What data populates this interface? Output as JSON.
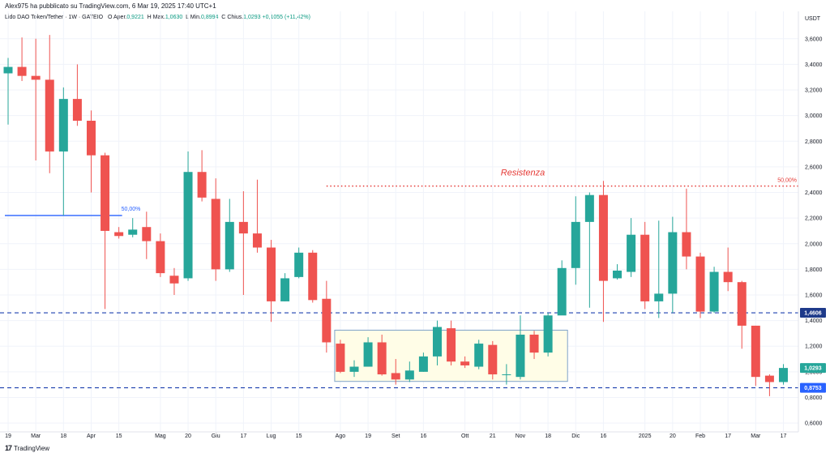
{
  "header": {
    "text": "Alex975 ha pubblicato su TradingView.com, 6 Mar 19, 2025 17:40 UTC+1"
  },
  "legend": {
    "symbol": "Lido DAO Token/Tether · 1W · GATEIO",
    "open_label": "O",
    "open_prefix": "Aper.",
    "open": "0,9221",
    "high_label": "H",
    "high_prefix": "Max.",
    "high": "1,0630",
    "low_label": "L",
    "low_prefix": "Min.",
    "low": "0,8994",
    "close_label": "C",
    "close_prefix": "Chius.",
    "close": "1,0293",
    "change": "+0,1055 (+11,42%)"
  },
  "footer": {
    "logo": "17",
    "text": "TradingView"
  },
  "colors": {
    "up": "#26a69a",
    "down": "#ef5350",
    "blue": "#2962ff",
    "dash": "#1e40af",
    "red": "#e53935",
    "box": "#fffde7"
  },
  "chart_data": {
    "type": "candlestick",
    "currency": "USDT",
    "ylim": [
      0.55,
      3.7
    ],
    "yticks": [
      "0,6000",
      "0,8000",
      "1,0000",
      "1,2000",
      "1,4000",
      "1,6000",
      "1,8000",
      "2,0000",
      "2,2000",
      "2,4000",
      "2,6000",
      "2,8000",
      "3,0000",
      "3,2000",
      "3,4000",
      "3,6000"
    ],
    "ytick_values": [
      0.6,
      0.8,
      1.0,
      1.2,
      1.4,
      1.6,
      1.8,
      2.0,
      2.2,
      2.4,
      2.6,
      2.8,
      3.0,
      3.2,
      3.4,
      3.6
    ],
    "xticks": [
      {
        "label": "19",
        "i": 0
      },
      {
        "label": "Mar",
        "i": 2
      },
      {
        "label": "18",
        "i": 4
      },
      {
        "label": "Apr",
        "i": 6
      },
      {
        "label": "15",
        "i": 8
      },
      {
        "label": "Mag",
        "i": 11
      },
      {
        "label": "20",
        "i": 13
      },
      {
        "label": "Giu",
        "i": 15
      },
      {
        "label": "17",
        "i": 17
      },
      {
        "label": "Lug",
        "i": 19
      },
      {
        "label": "15",
        "i": 21
      },
      {
        "label": "Ago",
        "i": 24
      },
      {
        "label": "19",
        "i": 26
      },
      {
        "label": "Set",
        "i": 28
      },
      {
        "label": "16",
        "i": 30
      },
      {
        "label": "Ott",
        "i": 33
      },
      {
        "label": "21",
        "i": 35
      },
      {
        "label": "Nov",
        "i": 37
      },
      {
        "label": "18",
        "i": 39
      },
      {
        "label": "Dic",
        "i": 41
      },
      {
        "label": "16",
        "i": 43
      },
      {
        "label": "2025",
        "i": 46
      },
      {
        "label": "20",
        "i": 48
      },
      {
        "label": "Feb",
        "i": 50
      },
      {
        "label": "17",
        "i": 52
      },
      {
        "label": "Mar",
        "i": 54
      },
      {
        "label": "17",
        "i": 56
      }
    ],
    "candles": [
      [
        3.33,
        3.38,
        2.93,
        3.45
      ],
      [
        3.38,
        3.31,
        3.27,
        3.61
      ],
      [
        3.31,
        3.28,
        2.65,
        3.6
      ],
      [
        3.28,
        2.72,
        2.55,
        3.63
      ],
      [
        2.72,
        3.13,
        2.22,
        3.22
      ],
      [
        3.13,
        2.96,
        2.92,
        3.4
      ],
      [
        2.96,
        2.69,
        2.4,
        3.04
      ],
      [
        2.69,
        2.1,
        1.49,
        2.71
      ],
      [
        2.09,
        2.06,
        2.04,
        2.13
      ],
      [
        2.07,
        2.11,
        2.05,
        2.2
      ],
      [
        2.13,
        2.02,
        1.88,
        2.25
      ],
      [
        2.02,
        1.77,
        1.74,
        2.08
      ],
      [
        1.75,
        1.69,
        1.6,
        1.81
      ],
      [
        1.73,
        2.56,
        1.71,
        2.72
      ],
      [
        2.56,
        2.36,
        2.33,
        2.73
      ],
      [
        2.35,
        1.8,
        1.71,
        2.51
      ],
      [
        1.8,
        2.17,
        1.78,
        2.35
      ],
      [
        2.17,
        2.08,
        1.6,
        2.41
      ],
      [
        2.08,
        1.97,
        1.93,
        2.5
      ],
      [
        1.97,
        1.55,
        1.39,
        2.03
      ],
      [
        1.55,
        1.73,
        1.55,
        1.77
      ],
      [
        1.74,
        1.93,
        1.73,
        1.97
      ],
      [
        1.93,
        1.56,
        1.54,
        1.95
      ],
      [
        1.57,
        1.23,
        1.15,
        1.71
      ],
      [
        1.22,
        1.0,
        0.99,
        1.25
      ],
      [
        1.0,
        1.04,
        0.96,
        1.09
      ],
      [
        1.04,
        1.23,
        1.04,
        1.27
      ],
      [
        1.23,
        0.98,
        0.97,
        1.29
      ],
      [
        0.99,
        0.94,
        0.9,
        1.1
      ],
      [
        0.94,
        1.01,
        0.92,
        1.08
      ],
      [
        1.0,
        1.12,
        1.0,
        1.15
      ],
      [
        1.12,
        1.35,
        1.05,
        1.4
      ],
      [
        1.34,
        1.08,
        1.05,
        1.4
      ],
      [
        1.08,
        1.05,
        1.03,
        1.12
      ],
      [
        1.04,
        1.22,
        1.02,
        1.25
      ],
      [
        1.21,
        0.98,
        0.94,
        1.24
      ],
      [
        0.98,
        0.98,
        0.9,
        1.06
      ],
      [
        0.96,
        1.29,
        0.94,
        1.44
      ],
      [
        1.29,
        1.15,
        1.1,
        1.32
      ],
      [
        1.15,
        1.44,
        1.12,
        1.46
      ],
      [
        1.44,
        1.81,
        1.47,
        1.87
      ],
      [
        1.81,
        2.17,
        1.68,
        2.37
      ],
      [
        2.17,
        2.38,
        1.5,
        2.4
      ],
      [
        2.38,
        1.71,
        1.39,
        2.49
      ],
      [
        1.73,
        1.79,
        1.72,
        1.84
      ],
      [
        1.78,
        2.07,
        1.74,
        2.2
      ],
      [
        2.07,
        1.55,
        1.49,
        2.17
      ],
      [
        1.55,
        1.61,
        1.42,
        2.18
      ],
      [
        1.61,
        2.09,
        1.46,
        2.21
      ],
      [
        2.09,
        1.9,
        1.8,
        2.43
      ],
      [
        1.9,
        1.47,
        1.42,
        1.93
      ],
      [
        1.47,
        1.78,
        1.46,
        1.82
      ],
      [
        1.78,
        1.7,
        1.63,
        1.97
      ],
      [
        1.7,
        1.36,
        1.18,
        1.71
      ],
      [
        1.36,
        0.96,
        0.89,
        1.36
      ],
      [
        0.97,
        0.92,
        0.81,
        0.98
      ],
      [
        0.92,
        1.03,
        0.9,
        1.06
      ]
    ],
    "annotations": {
      "resistance_label": "Resistenza",
      "resistance_value": 2.45,
      "resistance_pct": "50,00%",
      "fib_value": 2.22,
      "fib_pct": "50,00%",
      "support_upper": 1.4606,
      "support_upper_label": "1,4606",
      "support_lower": 0.8753,
      "support_lower_label": "0,8753",
      "last_price_label": "1,0293",
      "range_box": {
        "i_start": 24,
        "i_end": 40,
        "low": 0.925,
        "high": 1.325
      }
    }
  }
}
